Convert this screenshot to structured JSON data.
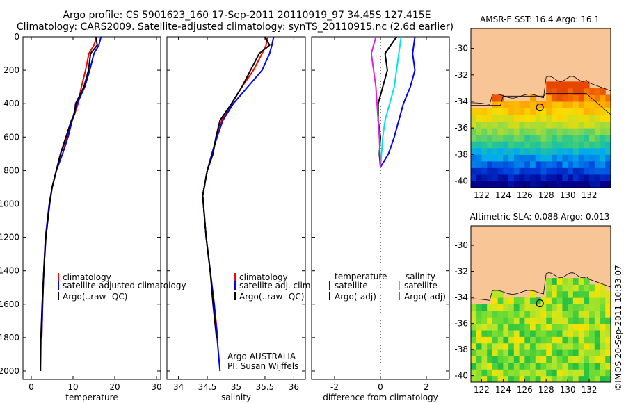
{
  "header": {
    "line1": "Argo profile: CS 5901623_160 17-Sep-2011 20110919_97 34.45S 127.415E",
    "line2": "Climatology: CARS2009. Satellite-adjusted climatology: synTS_20110915.nc (2.6d earlier)"
  },
  "colors": {
    "climatology": "#ff0000",
    "satellite": "#0000ff",
    "argo": "#000000",
    "satellite_salinity_diff": "#00e5e5",
    "argo_salinity_diff": "#e020e0",
    "land": "#f7c596"
  },
  "chart_data": [
    {
      "type": "line",
      "panel": "temperature",
      "xlabel": "temperature",
      "ylabel": "",
      "xlim": [
        -2,
        31
      ],
      "ylim": [
        2050,
        0
      ],
      "xticks": [
        "0",
        "10",
        "20",
        "30"
      ],
      "yticks": [
        "0",
        "200",
        "400",
        "600",
        "800",
        "1000",
        "1200",
        "1400",
        "1600",
        "1800",
        "2000"
      ],
      "legend": [
        "climatology",
        "satellite-adjusted climatology",
        "Argo(..raw -QC)"
      ],
      "series": [
        {
          "name": "climatology",
          "color": "#ff0000",
          "x": [
            15.7,
            15.0,
            13.8,
            13.0,
            12.0,
            11.2,
            10.4,
            9.8,
            8.6,
            7.0,
            6.0,
            5.0,
            4.3,
            3.4,
            3.0,
            2.7,
            2.5
          ],
          "y": [
            0,
            50,
            100,
            200,
            300,
            400,
            460,
            500,
            600,
            700,
            800,
            900,
            1000,
            1200,
            1400,
            1600,
            1800
          ]
        },
        {
          "name": "satellite-adjusted climatology",
          "color": "#0000ff",
          "x": [
            16.7,
            16.2,
            15.0,
            14.0,
            12.8,
            11.0,
            10.2,
            9.8,
            8.8,
            7.5,
            6.0,
            5.0,
            4.3,
            3.4,
            3.0,
            2.7,
            2.5
          ],
          "y": [
            0,
            50,
            100,
            200,
            300,
            400,
            460,
            500,
            600,
            700,
            800,
            900,
            1000,
            1200,
            1400,
            1600,
            1800
          ]
        },
        {
          "name": "Argo(..raw -QC)",
          "color": "#000000",
          "x": [
            15.5,
            15.8,
            14.2,
            13.7,
            12.6,
            10.6,
            10.4,
            9.6,
            8.3,
            7.0,
            6.0,
            5.0,
            4.4,
            3.5,
            3.0,
            2.6,
            2.3,
            2.2
          ],
          "y": [
            0,
            50,
            100,
            200,
            300,
            400,
            460,
            500,
            600,
            700,
            800,
            900,
            1000,
            1200,
            1400,
            1600,
            1800,
            2000
          ]
        }
      ]
    },
    {
      "type": "line",
      "panel": "salinity",
      "xlabel": "salinity",
      "xlim": [
        33.8,
        36.2
      ],
      "ylim": [
        2050,
        0
      ],
      "xticks": [
        "34",
        "34.5",
        "35",
        "35.5",
        "36"
      ],
      "legend": [
        "climatology",
        "satellite adj. clim.",
        "Argo(..raw -QC)"
      ],
      "annotation": [
        "Argo AUSTRALIA",
        "PI: Susan Wijffels"
      ],
      "series": [
        {
          "name": "climatology",
          "color": "#ff0000",
          "x": [
            35.55,
            35.52,
            35.45,
            35.3,
            35.1,
            34.92,
            34.75,
            34.66,
            34.58,
            34.5,
            34.42,
            34.48,
            34.55,
            34.62,
            34.68
          ],
          "y": [
            0,
            50,
            100,
            200,
            300,
            400,
            500,
            600,
            700,
            800,
            950,
            1200,
            1400,
            1600,
            1800
          ]
        },
        {
          "name": "satellite adj. clim.",
          "color": "#0000ff",
          "x": [
            35.65,
            35.62,
            35.58,
            35.45,
            35.2,
            34.95,
            34.77,
            34.67,
            34.58,
            34.5,
            34.42,
            34.48,
            34.55,
            34.62,
            34.72
          ],
          "y": [
            0,
            50,
            100,
            200,
            300,
            400,
            500,
            600,
            700,
            800,
            950,
            1200,
            1400,
            1600,
            2000
          ]
        },
        {
          "name": "Argo(..raw -QC)",
          "color": "#000000",
          "x": [
            35.5,
            35.58,
            35.4,
            35.25,
            35.1,
            34.92,
            34.72,
            34.65,
            34.6,
            34.5,
            34.42,
            34.48,
            34.55,
            34.6,
            34.66
          ],
          "y": [
            0,
            50,
            100,
            200,
            300,
            400,
            500,
            600,
            700,
            800,
            950,
            1200,
            1400,
            1600,
            1800
          ]
        }
      ]
    },
    {
      "type": "line",
      "panel": "difference",
      "xlabel": "difference from climatology",
      "xlim": [
        -3,
        3
      ],
      "ylim": [
        2050,
        0
      ],
      "xticks": [
        "-2",
        "0",
        "2"
      ],
      "legend_titles": [
        "temperature",
        "salinity"
      ],
      "legend": [
        "satellite",
        "Argo(-adj)",
        "satellite",
        "Argo(-adj)"
      ],
      "series": [
        {
          "name": "satellite",
          "color": "#0000ff",
          "x": [
            1.5,
            1.4,
            1.5,
            1.3,
            1.0,
            0.8,
            0.6,
            0.35,
            0.0
          ],
          "y": [
            0,
            100,
            200,
            300,
            400,
            500,
            600,
            700,
            780
          ]
        },
        {
          "name": "Argo(-adj)",
          "color": "#000000",
          "x": [
            0.7,
            0.2,
            0.3,
            0.1,
            -0.1,
            -0.1,
            0.0,
            -0.05,
            0.0
          ],
          "y": [
            0,
            100,
            200,
            300,
            400,
            500,
            600,
            700,
            780
          ]
        },
        {
          "name": "satellite",
          "color": "#00e5e5",
          "x": [
            0.9,
            0.8,
            0.7,
            0.6,
            0.4,
            0.2,
            0.1,
            0.0
          ],
          "y": [
            0,
            100,
            200,
            300,
            400,
            500,
            600,
            780
          ]
        },
        {
          "name": "Argo(-adj)",
          "color": "#e020e0",
          "x": [
            -0.2,
            -0.4,
            -0.3,
            -0.2,
            -0.15,
            -0.1,
            -0.05,
            0.0
          ],
          "y": [
            0,
            100,
            200,
            300,
            400,
            500,
            600,
            780
          ]
        }
      ]
    },
    {
      "type": "heatmap",
      "panel": "AMSR-E SST map",
      "title": "AMSR-E SST: 16.4 Argo: 16.1",
      "xticks": [
        "122",
        "124",
        "126",
        "128",
        "130",
        "132"
      ],
      "yticks": [
        "-30",
        "-32",
        "-34",
        "-36",
        "-38",
        "-40"
      ],
      "xlim": [
        121,
        134
      ],
      "ylim": [
        -40.5,
        -28.5
      ],
      "marker": {
        "lon": 127.415,
        "lat": -34.45
      }
    },
    {
      "type": "heatmap",
      "panel": "Altimetric SLA map",
      "title": "Altimetric SLA: 0.088 Argo: 0.013",
      "xticks": [
        "122",
        "124",
        "126",
        "128",
        "130",
        "132"
      ],
      "yticks": [
        "-30",
        "-32",
        "-34",
        "-36",
        "-38",
        "-40"
      ],
      "xlim": [
        121,
        134
      ],
      "ylim": [
        -40.5,
        -28.5
      ],
      "marker": {
        "lon": 127.415,
        "lat": -34.45
      }
    }
  ],
  "footer_stamp": "©IMOS 20-Sep-2011 10:33:07"
}
